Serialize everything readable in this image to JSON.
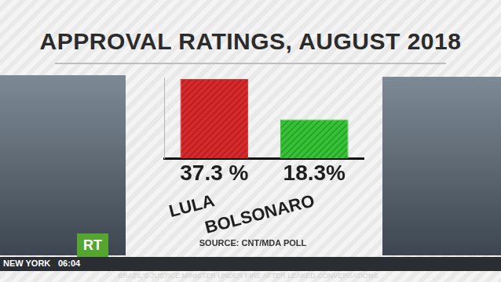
{
  "chart_data": {
    "type": "bar",
    "title": "APPROVAL RATINGS, AUGUST 2018",
    "categories": [
      "LULA",
      "BOLSONARO"
    ],
    "values": [
      37.3,
      18.3
    ],
    "value_labels": [
      "37.3 %",
      "18.3%"
    ],
    "data_labels": true,
    "colors": [
      "#d8282a",
      "#35c236"
    ],
    "ylim": [
      0,
      38
    ],
    "yticks": [],
    "grid": false,
    "tick_labels": "x",
    "source": "SOURCE: CNT/MDA POLL"
  },
  "overlay": {
    "channel": "RT",
    "location": "NEW YORK",
    "time": "06:04",
    "ticker": "BRAZIL'S JUSTICE MINISTER UNDER FIRE AFTER LEAKED CONVERSATIONS"
  }
}
